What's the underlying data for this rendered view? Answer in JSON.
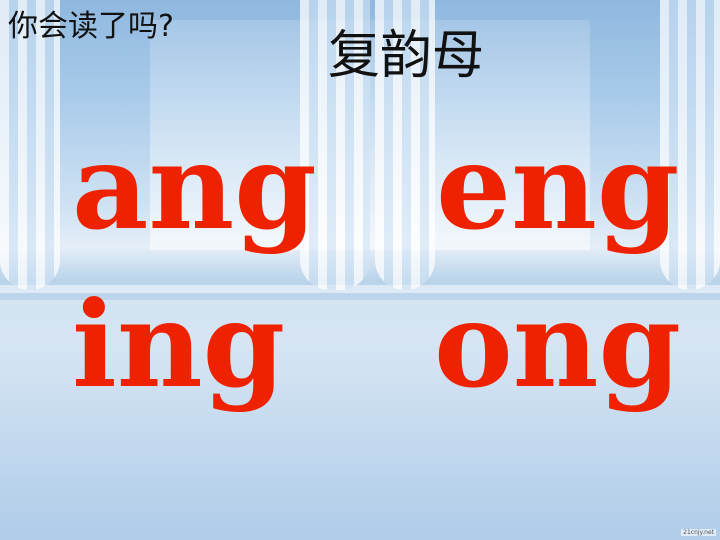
{
  "question": "你会读了吗?",
  "title": "复韵母",
  "syllables": [
    "ang",
    "eng",
    "ing",
    "ong"
  ],
  "colors": {
    "syllable": "#ee2200",
    "text": "#111111"
  },
  "watermark": "21cnjy.net"
}
